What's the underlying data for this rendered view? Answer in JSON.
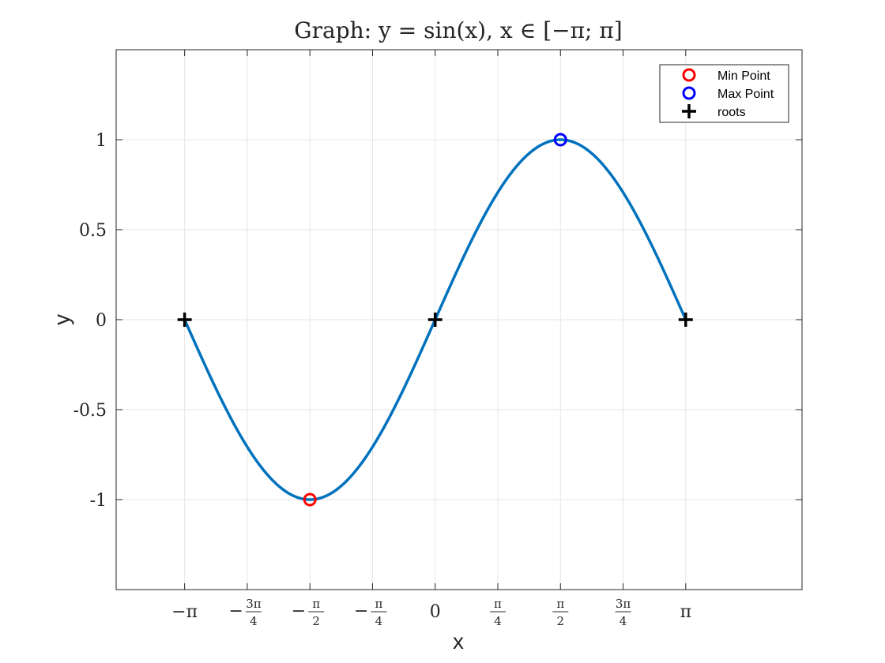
{
  "chart_data": {
    "type": "line",
    "title": "Graph:  y = sin(x), x ∈ [−π; π]",
    "xlabel": "x",
    "ylabel": "y",
    "xlim": [
      -4.0,
      4.6
    ],
    "ylim": [
      -1.5,
      1.5
    ],
    "grid": true,
    "legend_position": "top-right",
    "x_ticks": [
      {
        "value": -3.14159,
        "label": "−π"
      },
      {
        "value": -2.35619,
        "label": "−3π/4"
      },
      {
        "value": -1.5708,
        "label": "−π/2"
      },
      {
        "value": -0.7854,
        "label": "−π/4"
      },
      {
        "value": 0,
        "label": "0"
      },
      {
        "value": 0.7854,
        "label": "π/4"
      },
      {
        "value": 1.5708,
        "label": "π/2"
      },
      {
        "value": 2.35619,
        "label": "3π/4"
      },
      {
        "value": 3.14159,
        "label": "π"
      }
    ],
    "y_ticks": [
      {
        "value": 1,
        "label": "1"
      },
      {
        "value": 0.5,
        "label": "0.5"
      },
      {
        "value": 0,
        "label": "0"
      },
      {
        "value": -0.5,
        "label": "-0.5"
      },
      {
        "value": -1,
        "label": "-1"
      }
    ],
    "series": [
      {
        "function": "sin(x)",
        "x_range": [
          -3.14159,
          3.14159
        ],
        "color": "#0072BD"
      },
      {
        "name": "Min Point",
        "marker": "circle",
        "color": "#FF0000",
        "points": [
          {
            "x": -1.5708,
            "y": -1
          }
        ]
      },
      {
        "name": "Max Point",
        "marker": "circle",
        "color": "#0000FF",
        "points": [
          {
            "x": 1.5708,
            "y": 1
          }
        ]
      },
      {
        "name": "roots",
        "marker": "plus",
        "color": "#000000",
        "points": [
          {
            "x": -3.14159,
            "y": 0
          },
          {
            "x": 0,
            "y": 0
          },
          {
            "x": 3.14159,
            "y": 0
          }
        ]
      }
    ],
    "legend": [
      {
        "label": "Min Point",
        "marker": "circle",
        "color": "#FF0000"
      },
      {
        "label": "Max Point",
        "marker": "circle",
        "color": "#0000FF"
      },
      {
        "label": "roots",
        "marker": "plus",
        "color": "#000000"
      }
    ],
    "colors": {
      "axes": "#262626",
      "grid": "#E6E6E6",
      "background": "#FFFFFF"
    }
  }
}
